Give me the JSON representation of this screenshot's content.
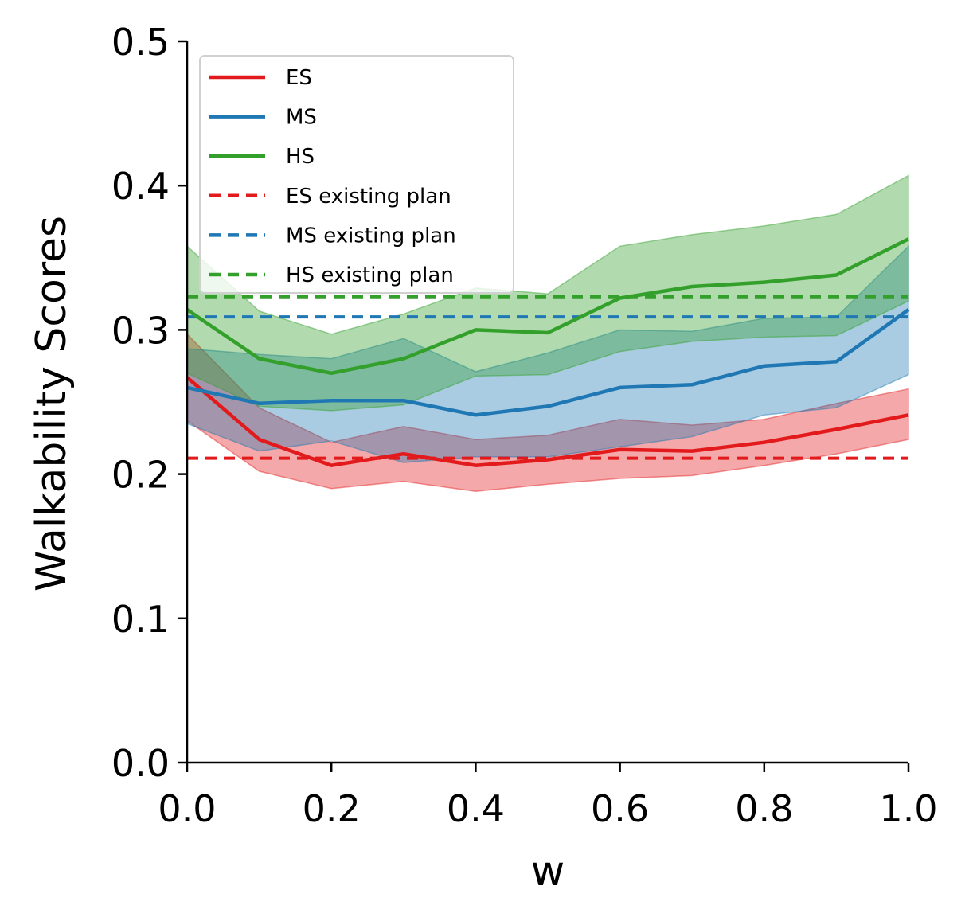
{
  "chart_data": {
    "type": "line",
    "xlabel": "w",
    "ylabel": "Walkability Scores",
    "xlim": [
      0.0,
      1.0
    ],
    "ylim": [
      0.0,
      0.5
    ],
    "xticks": [
      "0.0",
      "0.2",
      "0.4",
      "0.6",
      "0.8",
      "1.0"
    ],
    "yticks": [
      "0.0",
      "0.1",
      "0.2",
      "0.3",
      "0.4",
      "0.5"
    ],
    "grid": false,
    "legend_position": "upper-left",
    "x": [
      0.0,
      0.1,
      0.2,
      0.3,
      0.4,
      0.5,
      0.6,
      0.7,
      0.8,
      0.9,
      1.0
    ],
    "series": [
      {
        "name": "ES",
        "color": "#e31a1c",
        "style": "solid",
        "values": [
          0.267,
          0.224,
          0.206,
          0.214,
          0.206,
          0.21,
          0.217,
          0.216,
          0.222,
          0.231,
          0.241
        ],
        "lower": [
          0.237,
          0.202,
          0.19,
          0.195,
          0.188,
          0.193,
          0.197,
          0.199,
          0.206,
          0.214,
          0.224
        ],
        "upper": [
          0.297,
          0.246,
          0.222,
          0.233,
          0.224,
          0.227,
          0.238,
          0.234,
          0.238,
          0.249,
          0.259
        ]
      },
      {
        "name": "MS",
        "color": "#1f78b4",
        "style": "solid",
        "values": [
          0.26,
          0.249,
          0.251,
          0.251,
          0.241,
          0.247,
          0.26,
          0.262,
          0.275,
          0.278,
          0.314
        ],
        "lower": [
          0.235,
          0.216,
          0.223,
          0.208,
          0.212,
          0.212,
          0.219,
          0.226,
          0.241,
          0.246,
          0.269
        ],
        "upper": [
          0.287,
          0.283,
          0.28,
          0.294,
          0.271,
          0.284,
          0.3,
          0.299,
          0.308,
          0.309,
          0.358
        ]
      },
      {
        "name": "HS",
        "color": "#33a02c",
        "style": "solid",
        "values": [
          0.314,
          0.28,
          0.27,
          0.28,
          0.3,
          0.298,
          0.322,
          0.33,
          0.333,
          0.338,
          0.363
        ],
        "lower": [
          0.27,
          0.247,
          0.244,
          0.248,
          0.268,
          0.269,
          0.285,
          0.292,
          0.295,
          0.296,
          0.32
        ],
        "upper": [
          0.358,
          0.313,
          0.297,
          0.311,
          0.329,
          0.325,
          0.358,
          0.366,
          0.372,
          0.38,
          0.407
        ]
      },
      {
        "name": "ES existing plan",
        "color": "#e31a1c",
        "style": "dashed",
        "constant": 0.211
      },
      {
        "name": "MS existing plan",
        "color": "#1f78b4",
        "style": "dashed",
        "constant": 0.309
      },
      {
        "name": "HS existing plan",
        "color": "#33a02c",
        "style": "dashed",
        "constant": 0.323
      }
    ]
  }
}
